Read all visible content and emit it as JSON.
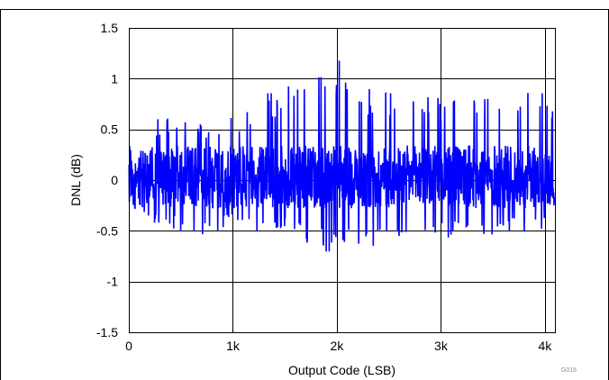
{
  "chart_data": {
    "type": "line",
    "title": "",
    "xlabel": "Output Code (LSB)",
    "ylabel": "DNL (dB)",
    "figure_id": "G016",
    "xlim": [
      0,
      4096
    ],
    "ylim": [
      -1.5,
      1.5
    ],
    "x_ticks": [
      0,
      1000,
      2000,
      3000,
      4000
    ],
    "x_tick_labels": [
      "0",
      "1k",
      "2k",
      "3k",
      "4k"
    ],
    "y_ticks": [
      1.5,
      1,
      0.5,
      0,
      -0.5,
      -1,
      -1.5
    ],
    "y_tick_labels": [
      "1.5",
      "1",
      "0.5",
      "0",
      "-0.5",
      "-1",
      "-1.5"
    ],
    "grid": true,
    "legend": "none",
    "series": [
      {
        "color": "#0000ff",
        "envelope": {
          "x": [
            0,
            128,
            256,
            384,
            512,
            640,
            768,
            896,
            1024,
            1152,
            1280,
            1408,
            1536,
            1664,
            1792,
            1920,
            2048,
            2176,
            2304,
            2432,
            2560,
            2688,
            2816,
            2944,
            3072,
            3200,
            3328,
            3456,
            3584,
            3712,
            3840,
            3968,
            4095
          ],
          "max": [
            0.55,
            0.5,
            0.6,
            0.62,
            0.6,
            0.55,
            0.58,
            0.6,
            0.65,
            0.72,
            0.9,
            0.85,
            0.95,
            1.05,
            1.25,
            1.1,
            1.2,
            0.95,
            0.9,
            1.0,
            0.85,
            0.75,
            0.9,
            0.8,
            0.85,
            0.8,
            0.95,
            0.85,
            0.7,
            0.8,
            0.88,
            0.9,
            0.85
          ],
          "min": [
            -0.3,
            -0.35,
            -0.45,
            -0.45,
            -0.55,
            -0.68,
            -0.52,
            -0.5,
            -0.45,
            -0.5,
            -0.55,
            -0.52,
            -0.5,
            -0.62,
            -0.65,
            -0.72,
            -0.68,
            -0.65,
            -0.7,
            -0.6,
            -0.55,
            -0.62,
            -0.65,
            -0.6,
            -0.58,
            -0.55,
            -0.6,
            -0.55,
            -0.6,
            -0.5,
            -0.55,
            -0.48,
            -0.42
          ]
        }
      }
    ]
  }
}
